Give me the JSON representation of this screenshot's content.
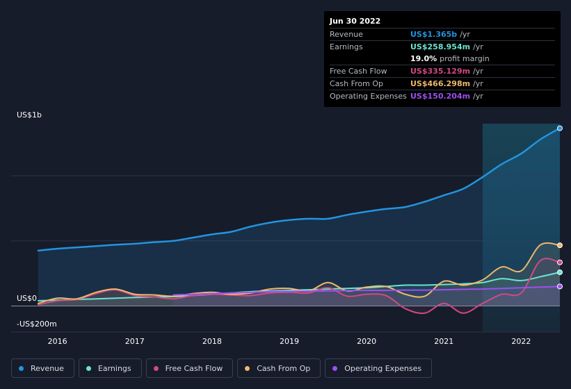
{
  "tooltip": {
    "date": "Jun 30 2022",
    "rows": [
      {
        "label": "Revenue",
        "value": "US$1.365b",
        "unit": "/yr",
        "color": "#2394df"
      },
      {
        "label": "Earnings",
        "value": "US$258.954m",
        "unit": "/yr",
        "color": "#6be3d2"
      },
      {
        "label": "",
        "value": "19.0%",
        "unit": "profit margin",
        "color": "#ffffff"
      },
      {
        "label": "Free Cash Flow",
        "value": "US$335.129m",
        "unit": "/yr",
        "color": "#d14a85"
      },
      {
        "label": "Cash From Op",
        "value": "US$466.298m",
        "unit": "/yr",
        "color": "#f0b86d"
      },
      {
        "label": "Operating Expenses",
        "value": "US$150.204m",
        "unit": "/yr",
        "color": "#9c4ff2"
      }
    ]
  },
  "axis": {
    "y_top_label": "US$1b",
    "y_zero_label": "US$0",
    "y_bottom_label": "-US$200m"
  },
  "legend": [
    {
      "label": "Revenue",
      "color": "#2394df"
    },
    {
      "label": "Earnings",
      "color": "#6be3d2"
    },
    {
      "label": "Free Cash Flow",
      "color": "#d14a85"
    },
    {
      "label": "Cash From Op",
      "color": "#f0b86d"
    },
    {
      "label": "Operating Expenses",
      "color": "#9c4ff2"
    }
  ],
  "chart_data": {
    "type": "line",
    "title": "",
    "xlabel": "",
    "ylabel": "",
    "ylim": [
      -200,
      1400
    ],
    "xlim": [
      2015.4,
      2022.5
    ],
    "x_ticks": [
      "2016",
      "2017",
      "2018",
      "2019",
      "2020",
      "2021",
      "2022"
    ],
    "highlight_range": [
      2021.5,
      2022.5
    ],
    "series": [
      {
        "name": "Revenue",
        "color": "#2394df",
        "x": [
          2015.75,
          2016.0,
          2016.25,
          2016.5,
          2016.75,
          2017.0,
          2017.25,
          2017.5,
          2017.75,
          2018.0,
          2018.25,
          2018.5,
          2018.75,
          2019.0,
          2019.25,
          2019.5,
          2019.75,
          2020.0,
          2020.25,
          2020.5,
          2020.75,
          2021.0,
          2021.25,
          2021.5,
          2021.75,
          2022.0,
          2022.25,
          2022.5
        ],
        "values": [
          425,
          440,
          450,
          460,
          470,
          478,
          490,
          500,
          525,
          550,
          570,
          610,
          640,
          660,
          670,
          670,
          700,
          725,
          745,
          760,
          800,
          850,
          900,
          990,
          1090,
          1170,
          1280,
          1365
        ]
      },
      {
        "name": "Earnings",
        "color": "#6be3d2",
        "x": [
          2015.75,
          2016.0,
          2016.25,
          2016.5,
          2016.75,
          2017.0,
          2017.25,
          2017.5,
          2017.75,
          2018.0,
          2018.25,
          2018.5,
          2018.75,
          2019.0,
          2019.25,
          2019.5,
          2019.75,
          2020.0,
          2020.25,
          2020.5,
          2020.75,
          2021.0,
          2021.25,
          2021.5,
          2021.75,
          2022.0,
          2022.25,
          2022.5
        ],
        "values": [
          40,
          45,
          50,
          55,
          60,
          65,
          70,
          72,
          80,
          90,
          100,
          110,
          115,
          120,
          125,
          130,
          135,
          140,
          150,
          160,
          160,
          165,
          170,
          180,
          210,
          195,
          225,
          259
        ]
      },
      {
        "name": "Free Cash Flow",
        "color": "#d14a85",
        "x": [
          2015.75,
          2016.0,
          2016.25,
          2016.5,
          2016.75,
          2017.0,
          2017.25,
          2017.5,
          2017.75,
          2018.0,
          2018.25,
          2018.5,
          2018.75,
          2019.0,
          2019.25,
          2019.5,
          2019.75,
          2020.0,
          2020.25,
          2020.5,
          2020.75,
          2021.0,
          2021.25,
          2021.5,
          2021.75,
          2022.0,
          2022.25,
          2022.5
        ],
        "values": [
          10,
          40,
          50,
          95,
          125,
          80,
          70,
          55,
          80,
          90,
          85,
          80,
          100,
          105,
          100,
          140,
          75,
          90,
          80,
          -20,
          -55,
          20,
          -55,
          20,
          90,
          100,
          350,
          335
        ]
      },
      {
        "name": "Cash From Op",
        "color": "#f0b86d",
        "x": [
          2015.75,
          2016.0,
          2016.25,
          2016.5,
          2016.75,
          2017.0,
          2017.25,
          2017.5,
          2017.75,
          2018.0,
          2018.25,
          2018.5,
          2018.75,
          2019.0,
          2019.25,
          2019.5,
          2019.75,
          2020.0,
          2020.25,
          2020.5,
          2020.75,
          2021.0,
          2021.25,
          2021.5,
          2021.75,
          2022.0,
          2022.25,
          2022.5
        ],
        "values": [
          20,
          60,
          55,
          105,
          130,
          90,
          85,
          75,
          95,
          105,
          90,
          100,
          130,
          135,
          115,
          180,
          115,
          145,
          150,
          90,
          75,
          190,
          160,
          200,
          300,
          270,
          470,
          466
        ]
      },
      {
        "name": "Operating Expenses",
        "color": "#9c4ff2",
        "x": [
          2017.5,
          2017.75,
          2018.0,
          2018.25,
          2018.5,
          2018.75,
          2019.0,
          2019.25,
          2019.5,
          2019.75,
          2020.0,
          2020.25,
          2020.5,
          2020.75,
          2021.0,
          2021.25,
          2021.5,
          2021.75,
          2022.0,
          2022.25,
          2022.5
        ],
        "values": [
          85,
          90,
          95,
          100,
          105,
          110,
          112,
          113,
          115,
          118,
          120,
          120,
          122,
          122,
          125,
          128,
          130,
          135,
          140,
          145,
          150
        ]
      }
    ]
  }
}
